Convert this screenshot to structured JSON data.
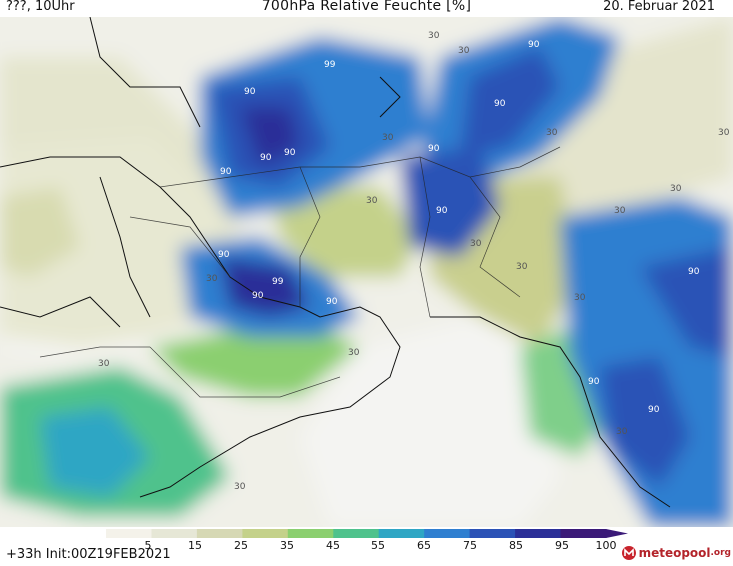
{
  "header": {
    "run_label": "???, 10Uhr",
    "title": "700hPa Relative Feuchte [%]",
    "date": "20. Februar 2021"
  },
  "map": {
    "contour_labels": [
      "90",
      "99",
      "90",
      "90",
      "90",
      "90",
      "90",
      "90",
      "90",
      "30",
      "30",
      "30",
      "30",
      "30",
      "99",
      "90",
      "90",
      "30",
      "90",
      "30",
      "30",
      "90",
      "30",
      "30",
      "30",
      "90",
      "90",
      "30",
      "30",
      "30",
      "30",
      "30"
    ]
  },
  "legend": {
    "ticks": [
      "5",
      "15",
      "25",
      "35",
      "45",
      "55",
      "65",
      "75",
      "85",
      "95",
      "100"
    ],
    "colors": [
      "#f4f2ea",
      "#e6e7d6",
      "#d6d8b4",
      "#c4d18a",
      "#8bcf6f",
      "#4fc28c",
      "#2fa6c4",
      "#2f7fd0",
      "#2b52b6",
      "#2b2f98",
      "#3b1a78"
    ]
  },
  "footer": {
    "forecast_info": "+33h Init:00Z19FEB2021",
    "logo_text": "meteopool",
    "logo_suffix": ".org"
  }
}
